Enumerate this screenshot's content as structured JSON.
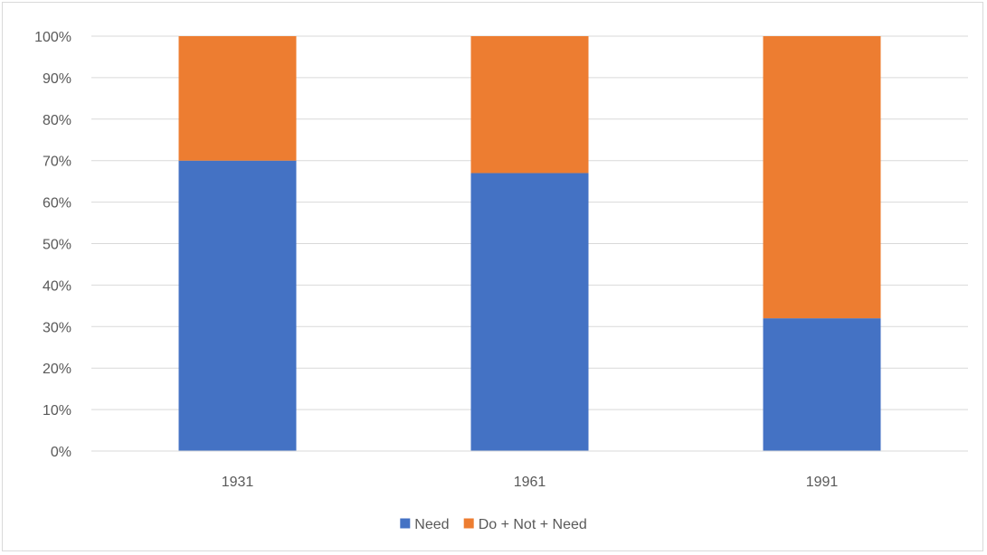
{
  "chart_data": {
    "type": "bar",
    "stacked": true,
    "categories": [
      "1931",
      "1961",
      "1991"
    ],
    "series": [
      {
        "name": "Need",
        "values": [
          70,
          67,
          32
        ],
        "color": "#4472c4"
      },
      {
        "name": "Do + Not + Need",
        "values": [
          30,
          33,
          68
        ],
        "color": "#ed7d31"
      }
    ],
    "y_ticks": [
      "0%",
      "10%",
      "20%",
      "30%",
      "40%",
      "50%",
      "60%",
      "70%",
      "80%",
      "90%",
      "100%"
    ],
    "ylim": [
      0,
      100
    ],
    "y_unit": "%",
    "grid": true,
    "legend_position": "bottom",
    "title": "",
    "xlabel": "",
    "ylabel": ""
  }
}
